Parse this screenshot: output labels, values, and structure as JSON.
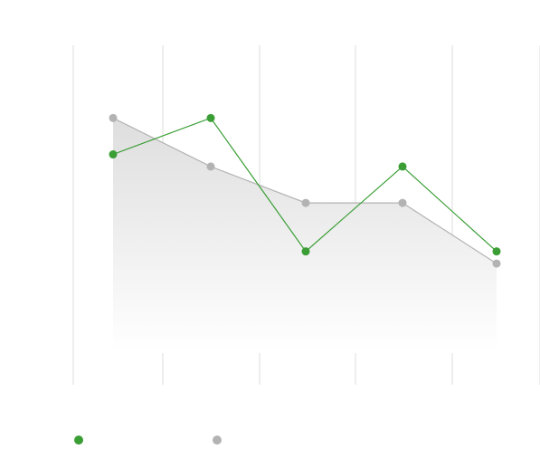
{
  "chart_data": {
    "type": "line",
    "categories": [
      "",
      "",
      "",
      "",
      ""
    ],
    "series": [
      {
        "name": "",
        "style": "line",
        "color": "#3a9e35",
        "values": [
          65,
          80,
          25,
          60,
          25
        ]
      },
      {
        "name": "",
        "style": "area",
        "color": "#b3b3b3",
        "values": [
          80,
          60,
          45,
          45,
          20
        ]
      }
    ],
    "ylim": [
      -30,
      110
    ],
    "grid": "vertical",
    "legend": "bottom-left",
    "title": "",
    "xlabel": "",
    "ylabel": ""
  }
}
